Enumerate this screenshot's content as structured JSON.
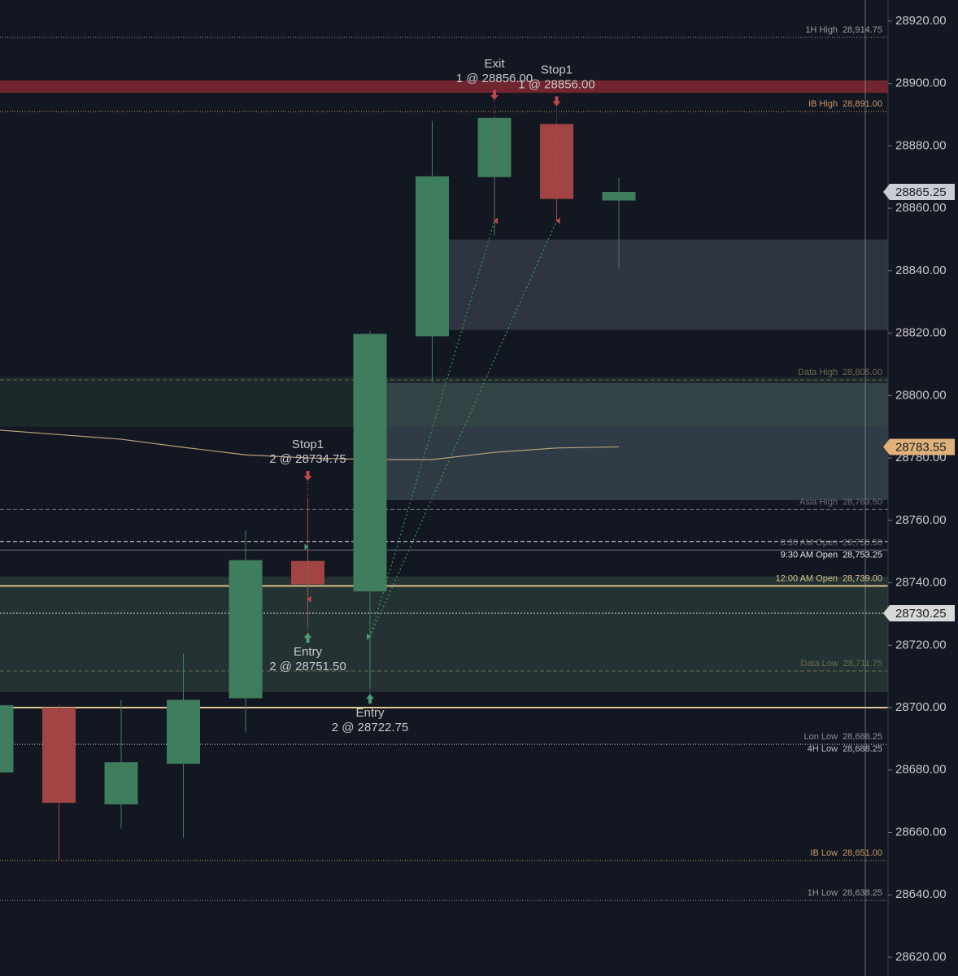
{
  "chart_data": {
    "type": "candlestick",
    "ylim": [
      28614,
      28926.75
    ],
    "yticks": [
      {
        "value": 28620,
        "label": "28620.00"
      },
      {
        "value": 28640,
        "label": "28640.00"
      },
      {
        "value": 28660,
        "label": "28660.00"
      },
      {
        "value": 28680,
        "label": "28680.00"
      },
      {
        "value": 28700,
        "label": "28700.00"
      },
      {
        "value": 28720,
        "label": "28720.00"
      },
      {
        "value": 28740,
        "label": "28740.00"
      },
      {
        "value": 28760,
        "label": "28760.00"
      },
      {
        "value": 28780,
        "label": "28780.00"
      },
      {
        "value": 28800,
        "label": "28800.00"
      },
      {
        "value": 28820,
        "label": "28820.00"
      },
      {
        "value": 28840,
        "label": "28840.00"
      },
      {
        "value": 28860,
        "label": "28860.00"
      },
      {
        "value": 28880,
        "label": "28880.00"
      },
      {
        "value": 28900,
        "label": "28900.00"
      },
      {
        "value": 28920,
        "label": "28920.00"
      }
    ],
    "up_color": "#3f7d5f",
    "down_color": "#a24444",
    "candles": [
      {
        "open": 28679.25,
        "high": 28700.75,
        "low": 28679.25,
        "close": 28700.75
      },
      {
        "open": 28700,
        "high": 28700.75,
        "low": 28651,
        "close": 28669.5
      },
      {
        "open": 28669,
        "high": 28702.5,
        "low": 28661.25,
        "close": 28682.5
      },
      {
        "open": 28682,
        "high": 28717.25,
        "low": 28658.25,
        "close": 28702.5
      },
      {
        "open": 28703,
        "high": 28756.75,
        "low": 28692,
        "close": 28747.25
      },
      {
        "open": 28747,
        "high": 28767,
        "low": 28726,
        "close": 28739.5
      },
      {
        "open": 28737.25,
        "high": 28820.75,
        "low": 28706.5,
        "close": 28819.75
      },
      {
        "open": 28819,
        "high": 28888,
        "low": 28804.25,
        "close": 28870.25
      },
      {
        "open": 28870,
        "high": 28889,
        "low": 28851.25,
        "close": 28889
      },
      {
        "open": 28887,
        "high": 28887,
        "low": 28856,
        "close": 28863
      },
      {
        "open": 28862.5,
        "high": 28869.75,
        "low": 28840.5,
        "close": 28865.25
      }
    ],
    "average": {
      "color": "#b9a37c",
      "values": [
        28789,
        28787.5,
        28786,
        28783.4,
        28781,
        28780,
        28779.5,
        28779.5,
        28781.8,
        28783.2,
        28783.55
      ]
    },
    "orders_above": [
      null,
      null,
      null,
      null,
      null,
      {
        "label": "Stop1",
        "text": "2 @ 28734.75",
        "price": 28734.75
      },
      null,
      null,
      {
        "label": "Exit",
        "text": "1 @ 28856.00",
        "price": 28856
      },
      {
        "label": "Stop1",
        "text": "1 @ 28856.00",
        "price": 28856
      },
      null
    ],
    "orders_below": [
      null,
      null,
      null,
      null,
      null,
      {
        "label": "Entry",
        "text": "2 @ 28751.50",
        "price": 28751.5
      },
      {
        "label": "Entry",
        "text": "2 @ 28722.75",
        "price": 28722.75
      },
      null,
      null,
      null,
      null
    ],
    "zones": [
      {
        "low": 28821,
        "high": 28850,
        "color": "rgba(120,130,150,0.28)"
      },
      {
        "low": 28766.5,
        "high": 28804,
        "color": "rgba(100,125,135,0.35)"
      },
      {
        "low": 28790,
        "high": 28806,
        "color": "rgba(60,90,70,0.25)"
      },
      {
        "low": 28705,
        "high": 28742,
        "color": "rgba(70,100,85,0.35)"
      },
      {
        "low": 28897,
        "high": 28901,
        "color": "rgba(190,50,60,0.55)"
      }
    ],
    "levels": [
      {
        "name": "1H High",
        "price": {
          "value": 28914.75,
          "label": "28,914.75"
        },
        "color": "#9a9a9a",
        "dash": "1 2"
      },
      {
        "name": "IB High",
        "price": {
          "value": 28891,
          "label": "28,891.00"
        },
        "color": "#c99a66",
        "dash": "1 2"
      },
      {
        "name": "Data High",
        "price": {
          "value": 28805,
          "label": "28,805.00"
        },
        "color": "#6b6b4f",
        "dash": "5 3"
      },
      {
        "name": "Asia High",
        "price": {
          "value": 28763.5,
          "label": "28,763.50"
        },
        "color": "#6a6f78",
        "dash": "5 3"
      },
      {
        "name": "8:30 AM Open",
        "price": {
          "value": 28750.5,
          "label": "28,750.50"
        },
        "color": "#6a6f78",
        "dash": ""
      },
      {
        "name": "9:30 AM Open",
        "price": {
          "value": 28753.25,
          "label": "28,753.25"
        },
        "color": "#e6e6e6",
        "dash": "5 3"
      },
      {
        "name": "12:00 AM Open",
        "price": {
          "value": 28739,
          "label": "28,739.00"
        },
        "color": "#d9c08a",
        "dash": ""
      },
      {
        "name": "Data Low",
        "price": {
          "value": 28711.75,
          "label": "28,711.75"
        },
        "color": "#6b6b4f",
        "dash": "5 3"
      },
      {
        "name": "Lon Low",
        "price": {
          "value": 28688.25,
          "label": "28,688.25"
        },
        "color": "#8a8f98",
        "dash": "1 2"
      },
      {
        "name": "4H Low",
        "price": {
          "value": 28688.25,
          "label": "28,688.25"
        },
        "color": "#b8bcc4",
        "dash": "1 2"
      },
      {
        "name": "IB Low",
        "price": {
          "value": 28651,
          "label": "28,651.00"
        },
        "color": "#c99a66",
        "dash": "1 2"
      },
      {
        "name": "1H Low",
        "price": {
          "value": 28638.25,
          "label": "28,638.25"
        },
        "color": "#9a9a9a",
        "dash": "1 2"
      }
    ],
    "plain_levels": [
      {
        "price": 28700,
        "color": "#e0c894"
      }
    ],
    "price_tags": [
      {
        "value": 28865.25,
        "color": "#c9ced6"
      },
      {
        "value": 28783.55,
        "color": "#e0b27a"
      },
      {
        "value": 28730.25,
        "color": "#d8d8d8"
      }
    ]
  }
}
